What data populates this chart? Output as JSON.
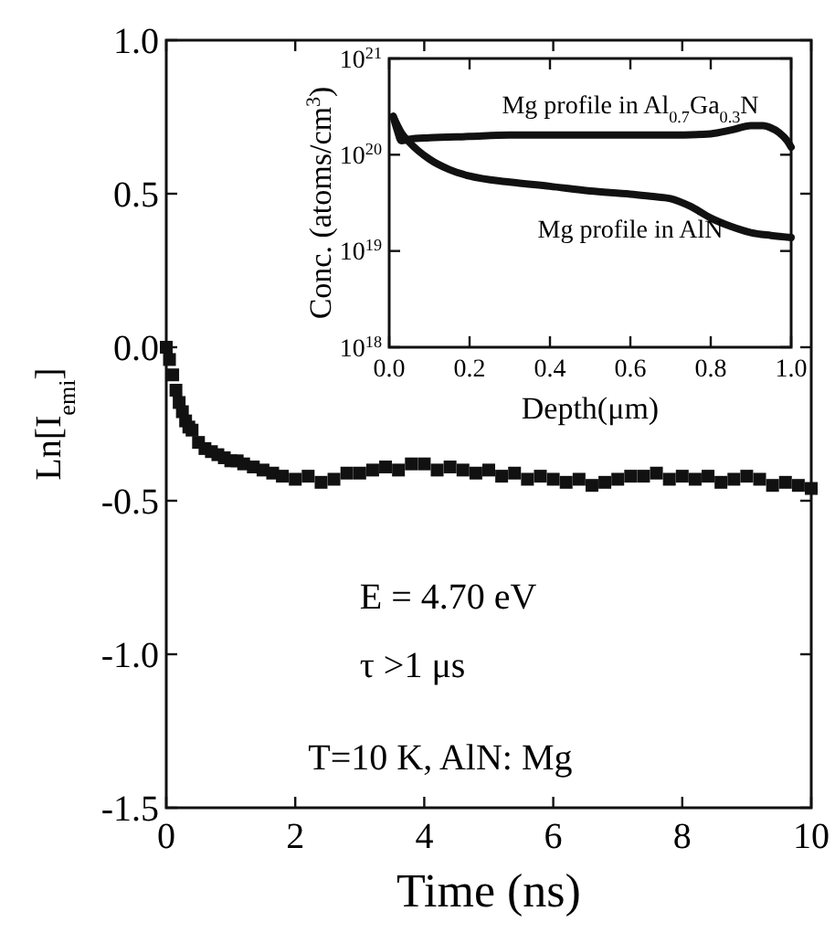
{
  "chart_data": [
    {
      "type": "scatter",
      "xlabel": "Time (ns)",
      "ylabel": "Ln[I$_{emi}$]",
      "marker": "square",
      "grid": false,
      "xlim": [
        0,
        10
      ],
      "xticks": [
        0,
        2,
        4,
        6,
        8,
        10
      ],
      "ylim": [
        -1.5,
        1.0
      ],
      "yticks": [
        {
          "value": -1.5,
          "label": "-1.5"
        },
        {
          "value": -1.0,
          "label": "-1.0"
        },
        {
          "value": -0.5,
          "label": "-0.5"
        },
        {
          "value": 0,
          "label": "0.0"
        },
        {
          "value": 0.5,
          "label": "0.5"
        },
        {
          "value": 1.0,
          "label": "1.0"
        }
      ],
      "annotations": [
        "E = 4.70 eV",
        "τ >1 μs",
        "T=10 K, AlN: Mg"
      ],
      "series": [
        {
          "color": "#111111",
          "x": [
            0,
            0.05,
            0.1,
            0.15,
            0.2,
            0.25,
            0.3,
            0.35,
            0.4,
            0.5,
            0.6,
            0.7,
            0.8,
            0.9,
            1.0,
            1.1,
            1.2,
            1.35,
            1.5,
            1.65,
            1.8,
            2.0,
            2.2,
            2.4,
            2.6,
            2.8,
            3.0,
            3.2,
            3.4,
            3.6,
            3.8,
            4.0,
            4.2,
            4.4,
            4.6,
            4.8,
            5.0,
            5.2,
            5.4,
            5.6,
            5.8,
            6.0,
            6.2,
            6.4,
            6.6,
            6.8,
            7.0,
            7.2,
            7.4,
            7.6,
            7.8,
            8.0,
            8.2,
            8.4,
            8.6,
            8.8,
            9.0,
            9.2,
            9.4,
            9.6,
            9.8,
            10.0
          ],
          "values": [
            0,
            -0.04,
            -0.09,
            -0.14,
            -0.18,
            -0.21,
            -0.24,
            -0.26,
            -0.27,
            -0.31,
            -0.33,
            -0.34,
            -0.35,
            -0.36,
            -0.37,
            -0.37,
            -0.38,
            -0.39,
            -0.4,
            -0.41,
            -0.42,
            -0.43,
            -0.42,
            -0.44,
            -0.43,
            -0.41,
            -0.41,
            -0.4,
            -0.39,
            -0.4,
            -0.38,
            -0.38,
            -0.4,
            -0.39,
            -0.4,
            -0.41,
            -0.4,
            -0.42,
            -0.41,
            -0.43,
            -0.42,
            -0.43,
            -0.44,
            -0.43,
            -0.45,
            -0.44,
            -0.43,
            -0.42,
            -0.42,
            -0.41,
            -0.43,
            -0.42,
            -0.43,
            -0.42,
            -0.44,
            -0.43,
            -0.42,
            -0.43,
            -0.45,
            -0.44,
            -0.45,
            -0.46
          ]
        }
      ]
    },
    {
      "type": "line",
      "xlabel": "Depth(μm)",
      "ylabel": "Conc. (atoms/cm$^{3}$)",
      "log": "y",
      "marker": "none",
      "grid": false,
      "xlim": [
        0,
        1
      ],
      "xticks": [
        {
          "value": 0,
          "label": "0.0"
        },
        {
          "value": 0.2,
          "label": "0.2"
        },
        {
          "value": 0.4,
          "label": "0.4"
        },
        {
          "value": 0.6,
          "label": "0.6"
        },
        {
          "value": 0.8,
          "label": "0.8"
        },
        {
          "value": 1,
          "label": "1.0"
        }
      ],
      "ylim": [
        1e+18,
        1e+21
      ],
      "yticks": [
        {
          "value": 1e+18,
          "label": "10$^{18}$"
        },
        {
          "value": 1e+19,
          "label": "10$^{19}$"
        },
        {
          "value": 1e+20,
          "label": "10$^{20}$"
        },
        {
          "value": 1e+21,
          "label": "10$^{21}$"
        }
      ],
      "series": [
        {
          "name": "Mg profile in Al$_{0.7}$Ga$_{0.3}$N",
          "color": "#111111",
          "x": [
            0.01,
            0.02,
            0.03,
            0.05,
            0.1,
            0.2,
            0.3,
            0.4,
            0.5,
            0.6,
            0.7,
            0.8,
            0.85,
            0.9,
            0.93,
            0.95,
            0.97,
            0.99,
            1.0
          ],
          "values": [
            2.5e+20,
            1.8e+20,
            1.4e+20,
            1.45e+20,
            1.5e+20,
            1.55e+20,
            1.6e+20,
            1.6e+20,
            1.6e+20,
            1.6e+20,
            1.6e+20,
            1.65e+20,
            1.8e+20,
            2e+20,
            2e+20,
            1.9e+20,
            1.7e+20,
            1.4e+20,
            1.2e+20
          ]
        },
        {
          "name": "Mg profile in AlN",
          "color": "#111111",
          "x": [
            0.01,
            0.03,
            0.05,
            0.1,
            0.15,
            0.2,
            0.3,
            0.4,
            0.5,
            0.6,
            0.65,
            0.7,
            0.75,
            0.8,
            0.85,
            0.9,
            0.95,
            1.0
          ],
          "values": [
            2.5e+20,
            1.7e+20,
            1.35e+20,
            9e+19,
            7e+19,
            6e+19,
            5.2e+19,
            4.7e+19,
            4.2e+19,
            3.9e+19,
            3.7e+19,
            3.5e+19,
            2.9e+19,
            2.2e+19,
            1.8e+19,
            1.55e+19,
            1.45e+19,
            1.38e+19
          ]
        }
      ]
    }
  ]
}
